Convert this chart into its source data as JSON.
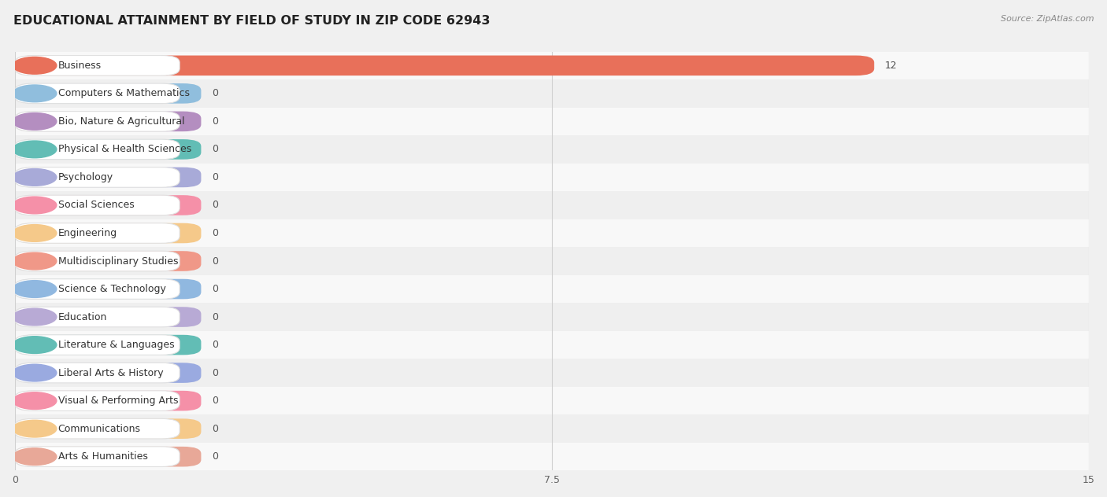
{
  "title": "EDUCATIONAL ATTAINMENT BY FIELD OF STUDY IN ZIP CODE 62943",
  "source": "Source: ZipAtlas.com",
  "categories": [
    "Business",
    "Computers & Mathematics",
    "Bio, Nature & Agricultural",
    "Physical & Health Sciences",
    "Psychology",
    "Social Sciences",
    "Engineering",
    "Multidisciplinary Studies",
    "Science & Technology",
    "Education",
    "Literature & Languages",
    "Liberal Arts & History",
    "Visual & Performing Arts",
    "Communications",
    "Arts & Humanities"
  ],
  "values": [
    12,
    0,
    0,
    0,
    0,
    0,
    0,
    0,
    0,
    0,
    0,
    0,
    0,
    0,
    0
  ],
  "bar_colors": [
    "#e8705a",
    "#90bedd",
    "#b48ec0",
    "#62bdb5",
    "#a8aad8",
    "#f590a8",
    "#f5c98a",
    "#f09888",
    "#90b8e0",
    "#b8aad5",
    "#62bdb5",
    "#9aaae0",
    "#f590a8",
    "#f5c98a",
    "#e8a898"
  ],
  "xlim": [
    0,
    15
  ],
  "xticks": [
    0,
    7.5,
    15
  ],
  "row_colors": [
    "#f8f8f8",
    "#efefef"
  ],
  "background_color": "#f0f0f0",
  "title_fontsize": 11.5,
  "label_fontsize": 9.0,
  "value_fontsize": 9.0
}
